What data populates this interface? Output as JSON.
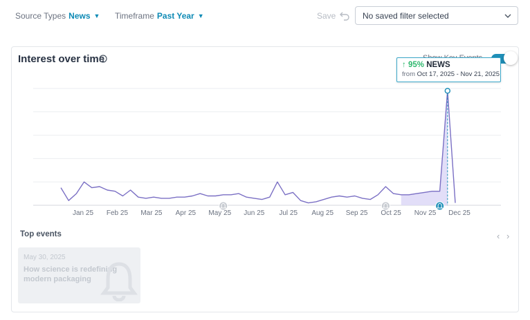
{
  "filters": {
    "source": {
      "label": "Source Types",
      "value": "News"
    },
    "timeframe": {
      "label": "Timeframe",
      "value": "Past Year"
    }
  },
  "save_label": "Save",
  "saved_filter": {
    "value": "No saved filter selected"
  },
  "card": {
    "title": "Interest over time",
    "toggle_label": "Show Key Events"
  },
  "tooltip": {
    "change": "95%",
    "series": "NEWS",
    "from_label": "from",
    "range": "Oct 17, 2025 - Nov 21, 2025"
  },
  "events": {
    "title": "Top events",
    "items": [
      {
        "date": "May 30, 2025",
        "headline": "How science is redefining modern packaging"
      }
    ]
  },
  "colors": {
    "accent": "#0d8ab5",
    "line": "#7a6fc4",
    "fill": "#ddd8f7",
    "up": "#2fb86e",
    "tooltip_border": "#3aa7c9"
  },
  "chart_data": {
    "type": "line",
    "x_tick_labels": [
      "Jan 25",
      "Feb 25",
      "Mar 25",
      "Apr 25",
      "May 25",
      "Jun 25",
      "Jul 25",
      "Aug 25",
      "Sep 25",
      "Oct 25",
      "Nov 25",
      "Dec 25"
    ],
    "ylim": [
      0,
      100
    ],
    "grid": true,
    "values": [
      15,
      4,
      10,
      20,
      15,
      16,
      13,
      12,
      8,
      13,
      7,
      6,
      7,
      6,
      6,
      7,
      7,
      8,
      10,
      8,
      8,
      9,
      9,
      10,
      7,
      6,
      5,
      7,
      20,
      9,
      11,
      4,
      2,
      3,
      5,
      7,
      8,
      7,
      8,
      6,
      5,
      9,
      16,
      10,
      9,
      9,
      10,
      11,
      12,
      12,
      98,
      2
    ],
    "highlight": {
      "start_index": 44,
      "end_index": 50,
      "peak_index": 50,
      "peak_value": 98
    },
    "event_markers": [
      {
        "index": 21
      },
      {
        "index": 42
      },
      {
        "index": 49
      }
    ]
  }
}
